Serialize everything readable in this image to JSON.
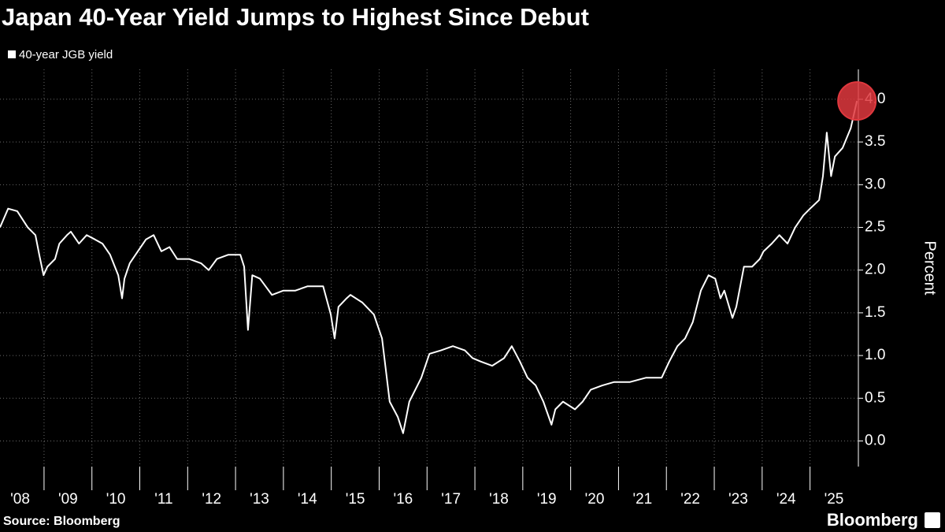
{
  "chart_data": {
    "type": "line",
    "title": "Japan 40-Year Yield Jumps to Highest Since Debut",
    "y_label": "Percent",
    "source": "Source: Bloomberg",
    "brand": "Bloomberg",
    "series": [
      {
        "name": "40-year JGB yield",
        "color": "#ffffff",
        "x": [
          2008.08,
          2008.25,
          2008.44,
          2008.66,
          2008.82,
          2008.9,
          2008.99,
          2009.07,
          2009.23,
          2009.32,
          2009.48,
          2009.56,
          2009.73,
          2009.89,
          2010.06,
          2010.22,
          2010.38,
          2010.55,
          2010.63,
          2010.68,
          2010.79,
          2010.96,
          2011.13,
          2011.29,
          2011.45,
          2011.62,
          2011.78,
          2012.03,
          2012.28,
          2012.44,
          2012.61,
          2012.85,
          2013.1,
          2013.18,
          2013.26,
          2013.35,
          2013.51,
          2013.76,
          2014.0,
          2014.25,
          2014.5,
          2014.83,
          2014.99,
          2015.07,
          2015.15,
          2015.32,
          2015.4,
          2015.65,
          2015.89,
          2016.06,
          2016.14,
          2016.22,
          2016.39,
          2016.5,
          2016.63,
          2016.8,
          2016.88,
          2017.05,
          2017.29,
          2017.54,
          2017.79,
          2017.95,
          2018.12,
          2018.36,
          2018.61,
          2018.77,
          2018.94,
          2019.1,
          2019.27,
          2019.43,
          2019.6,
          2019.68,
          2019.84,
          2020.09,
          2020.25,
          2020.42,
          2020.66,
          2020.91,
          2021.24,
          2021.57,
          2021.9,
          2022.06,
          2022.23,
          2022.39,
          2022.55,
          2022.72,
          2022.88,
          2023.02,
          2023.13,
          2023.21,
          2023.38,
          2023.46,
          2023.62,
          2023.79,
          2023.95,
          2024.03,
          2024.2,
          2024.36,
          2024.53,
          2024.69,
          2024.86,
          2025.02,
          2025.19,
          2025.27,
          2025.35,
          2025.44,
          2025.52,
          2025.68,
          2025.85,
          2025.98
        ],
        "values": [
          2.5,
          2.72,
          2.69,
          2.5,
          2.41,
          2.18,
          1.94,
          2.04,
          2.13,
          2.31,
          2.41,
          2.45,
          2.31,
          2.41,
          2.36,
          2.31,
          2.18,
          1.94,
          1.67,
          1.9,
          2.08,
          2.22,
          2.36,
          2.41,
          2.22,
          2.27,
          2.13,
          2.13,
          2.08,
          2.0,
          2.13,
          2.18,
          2.18,
          2.04,
          1.3,
          1.94,
          1.9,
          1.71,
          1.76,
          1.76,
          1.81,
          1.81,
          1.48,
          1.2,
          1.57,
          1.67,
          1.71,
          1.62,
          1.48,
          1.2,
          0.83,
          0.46,
          0.28,
          0.09,
          0.46,
          0.65,
          0.74,
          1.02,
          1.06,
          1.11,
          1.06,
          0.97,
          0.93,
          0.88,
          0.97,
          1.11,
          0.93,
          0.74,
          0.65,
          0.46,
          0.19,
          0.37,
          0.46,
          0.37,
          0.46,
          0.6,
          0.65,
          0.69,
          0.69,
          0.74,
          0.74,
          0.93,
          1.11,
          1.2,
          1.39,
          1.76,
          1.94,
          1.9,
          1.67,
          1.76,
          1.44,
          1.57,
          2.04,
          2.04,
          2.13,
          2.22,
          2.31,
          2.41,
          2.31,
          2.5,
          2.64,
          2.73,
          2.82,
          3.1,
          3.61,
          3.1,
          3.33,
          3.43,
          3.66,
          3.98
        ]
      }
    ],
    "highlight_color": "#e0383e",
    "xlim": [
      2008.08,
      2026.01
    ],
    "xticks": [
      {
        "value": 2008,
        "label": "'08"
      },
      {
        "value": 2009,
        "label": "'09"
      },
      {
        "value": 2010,
        "label": "'10"
      },
      {
        "value": 2011,
        "label": "'11"
      },
      {
        "value": 2012,
        "label": "'12"
      },
      {
        "value": 2013,
        "label": "'13"
      },
      {
        "value": 2014,
        "label": "'14"
      },
      {
        "value": 2015,
        "label": "'15"
      },
      {
        "value": 2016,
        "label": "'16"
      },
      {
        "value": 2017,
        "label": "'17"
      },
      {
        "value": 2018,
        "label": "'18"
      },
      {
        "value": 2019,
        "label": "'19"
      },
      {
        "value": 2020,
        "label": "'20"
      },
      {
        "value": 2021,
        "label": "'21"
      },
      {
        "value": 2022,
        "label": "'22"
      },
      {
        "value": 2023,
        "label": "'23"
      },
      {
        "value": 2024,
        "label": "'24"
      },
      {
        "value": 2025,
        "label": "'25"
      }
    ],
    "ylim": [
      -0.3,
      4.35
    ],
    "yticks": [
      {
        "value": 0,
        "label": "0.0"
      },
      0.5,
      {
        "value": 1,
        "label": "1.0"
      },
      1.5,
      {
        "value": 2,
        "label": "2.0"
      },
      2.5,
      {
        "value": 3,
        "label": "3.0"
      },
      3.5,
      {
        "value": 4,
        "label": "4.0"
      }
    ],
    "grid": true
  }
}
